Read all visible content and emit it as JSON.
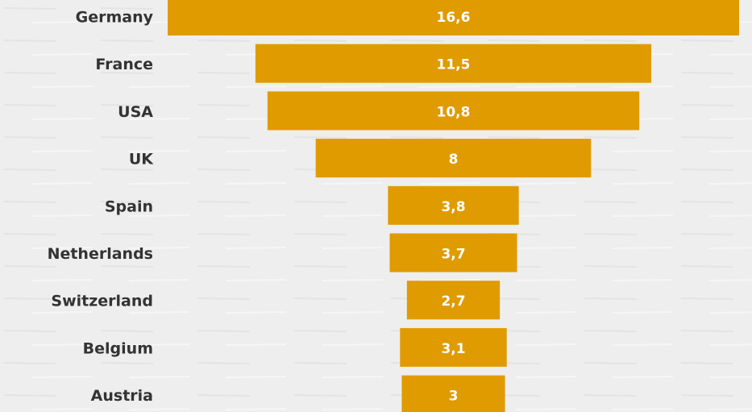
{
  "chart_data": {
    "type": "funnel",
    "categories": [
      "Germany",
      "France",
      "USA",
      "UK",
      "Spain",
      "Netherlands",
      "Switzerland",
      "Belgium",
      "Austria"
    ],
    "values": [
      16.6,
      11.5,
      10.8,
      8,
      3.8,
      3.7,
      2.7,
      3.1,
      3
    ],
    "value_labels": [
      "16,6",
      "11,5",
      "10,8",
      "8",
      "3,8",
      "3,7",
      "2,7",
      "3,1",
      "3"
    ],
    "color": "#e09b00"
  }
}
